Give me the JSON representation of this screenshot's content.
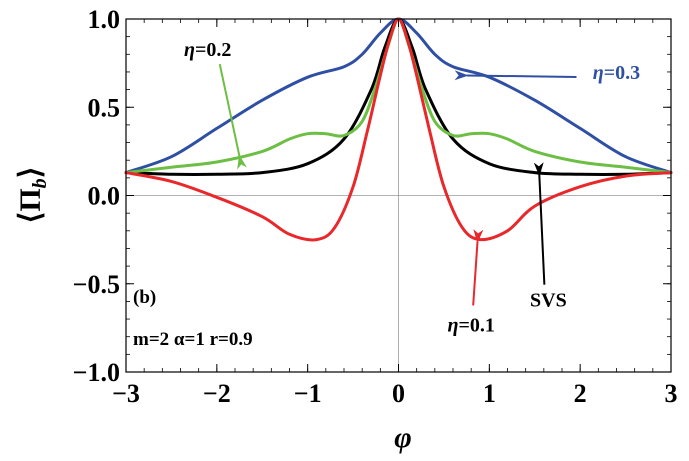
{
  "chart_data": {
    "type": "line",
    "xlabel": "φ",
    "ylabel": "⟨Π_b⟩",
    "xlim": [
      -3,
      3
    ],
    "ylim": [
      -1,
      1
    ],
    "xticks": [
      -3,
      -2,
      -1,
      0,
      1,
      2,
      3
    ],
    "xtick_labels": [
      "−3",
      "−2",
      "−1",
      "0",
      "1",
      "2",
      "3"
    ],
    "yticks": [
      -1,
      -0.5,
      0,
      0.5,
      1
    ],
    "ytick_labels": [
      "−1.0",
      "−0.5",
      "0.0",
      "0.5",
      "1.0"
    ],
    "panel_label": "(b)",
    "params_label": "m=2 α=1 r=0.9",
    "series": [
      {
        "name": "η=0.3",
        "color": "#2e4fa3",
        "x": [
          -3,
          -2.5,
          -2,
          -1.5,
          -1,
          -0.6,
          -0.4,
          -0.2,
          0,
          0.2,
          0.4,
          0.6,
          1,
          1.5,
          2,
          2.5,
          3
        ],
        "y": [
          0.13,
          0.22,
          0.38,
          0.54,
          0.67,
          0.73,
          0.8,
          0.92,
          1.0,
          0.92,
          0.8,
          0.73,
          0.67,
          0.54,
          0.38,
          0.22,
          0.13
        ]
      },
      {
        "name": "SVS",
        "color": "#000000",
        "x": [
          -3,
          -2.5,
          -2,
          -1.5,
          -1,
          -0.6,
          -0.3,
          -0.15,
          0,
          0.15,
          0.3,
          0.6,
          1,
          1.5,
          2,
          2.5,
          3
        ],
        "y": [
          0.13,
          0.12,
          0.12,
          0.13,
          0.18,
          0.32,
          0.6,
          0.84,
          1.0,
          0.84,
          0.6,
          0.32,
          0.18,
          0.13,
          0.12,
          0.12,
          0.13
        ]
      },
      {
        "name": "η=0.2",
        "color": "#6cbf44",
        "x": [
          -3,
          -2.5,
          -2,
          -1.5,
          -1.2,
          -1,
          -0.8,
          -0.6,
          -0.4,
          -0.25,
          -0.12,
          0,
          0.12,
          0.25,
          0.4,
          0.6,
          0.8,
          1,
          1.2,
          1.5,
          2,
          2.5,
          3
        ],
        "y": [
          0.13,
          0.16,
          0.19,
          0.25,
          0.32,
          0.35,
          0.35,
          0.34,
          0.42,
          0.62,
          0.84,
          1.0,
          0.84,
          0.62,
          0.42,
          0.34,
          0.35,
          0.35,
          0.32,
          0.25,
          0.19,
          0.16,
          0.13
        ]
      },
      {
        "name": "η=0.1",
        "color": "#e8282b",
        "x": [
          -3,
          -2.5,
          -2,
          -1.5,
          -1.2,
          -0.9,
          -0.7,
          -0.5,
          -0.35,
          -0.2,
          -0.1,
          0,
          0.1,
          0.2,
          0.35,
          0.5,
          0.7,
          0.9,
          1.2,
          1.5,
          2,
          2.5,
          3
        ],
        "y": [
          0.13,
          0.08,
          -0.01,
          -0.12,
          -0.22,
          -0.25,
          -0.18,
          0.05,
          0.35,
          0.68,
          0.88,
          1.0,
          0.88,
          0.68,
          0.35,
          0.05,
          -0.18,
          -0.25,
          -0.2,
          -0.06,
          0.05,
          0.11,
          0.13
        ]
      }
    ],
    "annotations": [
      {
        "text": "η=0.3",
        "color": "#2e4fa3",
        "text_x": 2.4,
        "text_y": 0.66,
        "arrow_to": [
          0.75,
          0.68
        ]
      },
      {
        "text": "η=0.2",
        "color": "#000000",
        "arrow_color": "#6cbf44",
        "text_x": -2.1,
        "text_y": 0.79,
        "arrow_to": [
          -1.75,
          0.22
        ]
      },
      {
        "text": "η=0.1",
        "color": "#000000",
        "arrow_color": "#e8282b",
        "text_x": 0.8,
        "text_y": -0.77,
        "arrow_to": [
          0.87,
          -0.26
        ]
      },
      {
        "text": "SVS",
        "color": "#000000",
        "arrow_color": "#000000",
        "text_x": 1.65,
        "text_y": -0.63,
        "arrow_to": [
          1.55,
          0.12
        ]
      }
    ]
  }
}
